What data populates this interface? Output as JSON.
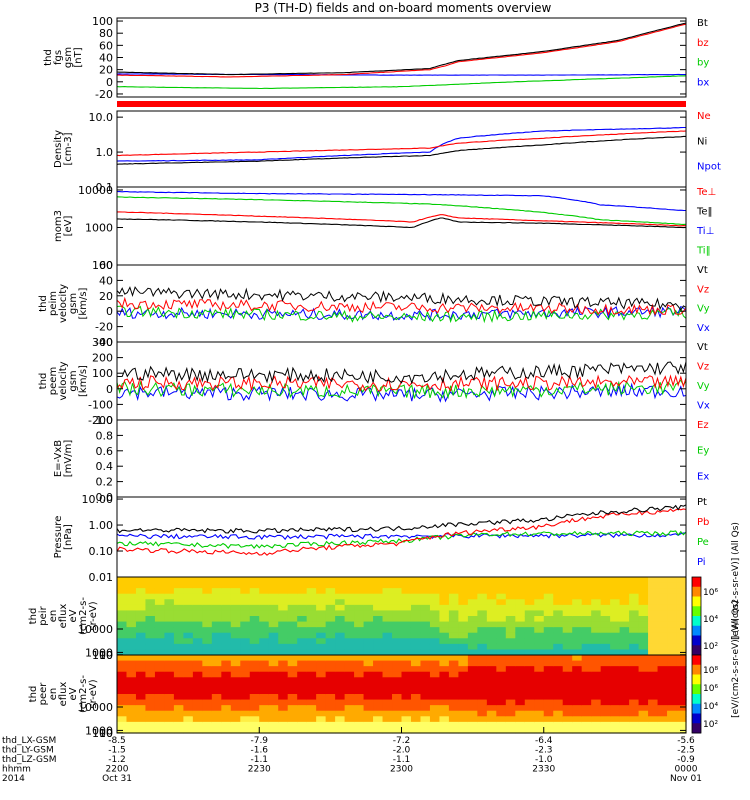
{
  "title": "P3 (TH-D) fields and on-board moments overview",
  "chart_data": [
    {
      "type": "line",
      "ylabel": [
        "thd",
        "fgs",
        "gsm",
        "[nT]"
      ],
      "yticks": [
        "100",
        "80",
        "60",
        "40",
        "20",
        "0",
        "-20"
      ],
      "ylim": [
        -25,
        105
      ],
      "legend": [
        {
          "name": "Bt",
          "color": "#000000"
        },
        {
          "name": "bz",
          "color": "#ff0000"
        },
        {
          "name": "by",
          "color": "#00cc00"
        },
        {
          "name": "bx",
          "color": "#0000ff"
        }
      ],
      "series": [
        {
          "name": "Bt",
          "x": [
            0,
            0.2,
            0.4,
            0.55,
            0.58,
            0.6,
            0.75,
            0.88,
            1
          ],
          "y": [
            16,
            12,
            15,
            22,
            30,
            35,
            50,
            68,
            97
          ]
        },
        {
          "name": "bz",
          "x": [
            0,
            0.2,
            0.4,
            0.55,
            0.58,
            0.6,
            0.75,
            0.88,
            1
          ],
          "y": [
            11,
            8,
            12,
            20,
            27,
            33,
            48,
            66,
            95
          ]
        },
        {
          "name": "by",
          "x": [
            0,
            0.25,
            0.5,
            0.7,
            1
          ],
          "y": [
            -8,
            -11,
            -8,
            0,
            10
          ]
        },
        {
          "name": "bx",
          "x": [
            0,
            0.25,
            0.5,
            0.75,
            1
          ],
          "y": [
            13,
            12,
            11,
            11,
            12
          ]
        }
      ],
      "color_bar_indicator": "#ff0000"
    },
    {
      "type": "line",
      "scale": "log",
      "ylabel": [
        "Density",
        "[cm-3]"
      ],
      "yticks": [
        "10.0",
        "1.0",
        "0.1"
      ],
      "ylim": [
        0.1,
        15
      ],
      "legend": [
        {
          "name": "Ne",
          "color": "#ff0000"
        },
        {
          "name": "Ni",
          "color": "#000000"
        },
        {
          "name": "Npot",
          "color": "#0000ff"
        }
      ],
      "series": [
        {
          "name": "Ne",
          "x": [
            0,
            0.25,
            0.55,
            0.6,
            0.75,
            1
          ],
          "y": [
            0.8,
            1.0,
            1.3,
            1.8,
            2.5,
            4.0
          ]
        },
        {
          "name": "Ni",
          "x": [
            0,
            0.25,
            0.55,
            0.6,
            0.75,
            1
          ],
          "y": [
            0.45,
            0.55,
            0.8,
            1.1,
            1.6,
            2.8
          ]
        },
        {
          "name": "Npot",
          "x": [
            0,
            0.25,
            0.55,
            0.6,
            0.75,
            1
          ],
          "y": [
            0.55,
            0.6,
            1.0,
            2.5,
            4.0,
            5.0
          ]
        }
      ]
    },
    {
      "type": "line",
      "scale": "log",
      "ylabel": [
        "mom3",
        "[eV]"
      ],
      "yticks": [
        "10000",
        "1000",
        "100"
      ],
      "ylim": [
        100,
        12000
      ],
      "legend": [
        {
          "name": "Te⊥",
          "color": "#ff0000"
        },
        {
          "name": "Te‖",
          "color": "#000000"
        },
        {
          "name": "Ti⊥",
          "color": "#0000ff"
        },
        {
          "name": "Ti‖",
          "color": "#00cc00"
        }
      ],
      "series": [
        {
          "name": "Te⊥",
          "x": [
            0,
            0.25,
            0.52,
            0.57,
            0.6,
            0.75,
            1
          ],
          "y": [
            2600,
            2000,
            1400,
            2200,
            1800,
            1500,
            1100
          ]
        },
        {
          "name": "Te‖",
          "x": [
            0,
            0.25,
            0.52,
            0.57,
            0.6,
            0.75,
            1
          ],
          "y": [
            1700,
            1400,
            1000,
            1800,
            1400,
            1300,
            1000
          ]
        },
        {
          "name": "Ti⊥",
          "x": [
            0,
            0.25,
            0.55,
            0.75,
            0.85,
            1
          ],
          "y": [
            9000,
            8000,
            7500,
            7000,
            4000,
            2800
          ]
        },
        {
          "name": "Ti‖",
          "x": [
            0,
            0.25,
            0.55,
            0.75,
            0.85,
            1
          ],
          "y": [
            6500,
            5500,
            4200,
            2500,
            1600,
            1200
          ]
        }
      ]
    },
    {
      "type": "line",
      "ylabel": [
        "thd",
        "peim",
        "velocity",
        "gsm",
        "[km/s]"
      ],
      "yticks": [
        "60",
        "40",
        "20",
        "0",
        "-20",
        "-40"
      ],
      "ylim": [
        -40,
        60
      ],
      "legend": [
        {
          "name": "Vt",
          "color": "#000000"
        },
        {
          "name": "Vz",
          "color": "#ff0000"
        },
        {
          "name": "Vy",
          "color": "#00cc00"
        },
        {
          "name": "Vx",
          "color": "#0000ff"
        }
      ],
      "series": [
        {
          "name": "Vt",
          "x": [
            0,
            0.5,
            1
          ],
          "y": [
            25,
            18,
            8
          ]
        },
        {
          "name": "Vz",
          "x": [
            0,
            0.5,
            1
          ],
          "y": [
            10,
            5,
            2
          ]
        },
        {
          "name": "Vy",
          "x": [
            0,
            0.5,
            1
          ],
          "y": [
            0,
            -8,
            -3
          ]
        },
        {
          "name": "Vx",
          "x": [
            0,
            0.5,
            1
          ],
          "y": [
            -2,
            -5,
            0
          ]
        }
      ]
    },
    {
      "type": "line",
      "ylabel": [
        "thd",
        "peem",
        "velocity",
        "gsm",
        "[km/s]"
      ],
      "yticks": [
        "300",
        "200",
        "100",
        "0",
        "-100",
        "-200"
      ],
      "ylim": [
        -200,
        300
      ],
      "legend": [
        {
          "name": "Vt",
          "color": "#000000"
        },
        {
          "name": "Vz",
          "color": "#ff0000"
        },
        {
          "name": "Vy",
          "color": "#00cc00"
        },
        {
          "name": "Vx",
          "color": "#0000ff"
        }
      ],
      "series": [
        {
          "name": "Vt",
          "x": [
            0,
            0.5,
            1
          ],
          "y": [
            100,
            80,
            140
          ]
        },
        {
          "name": "Vz",
          "x": [
            0,
            0.5,
            1
          ],
          "y": [
            40,
            30,
            40
          ]
        },
        {
          "name": "Vy",
          "x": [
            0,
            0.5,
            1
          ],
          "y": [
            0,
            -20,
            10
          ]
        },
        {
          "name": "Vx",
          "x": [
            0,
            0.5,
            1
          ],
          "y": [
            -20,
            -40,
            -10
          ]
        }
      ]
    },
    {
      "type": "line",
      "ylabel": [
        "E=-VxB",
        "[mV/m]"
      ],
      "yticks": [
        "1.0",
        "0.8",
        "0.6",
        "0.4",
        "0.2",
        "0.0"
      ],
      "ylim": [
        0,
        1
      ],
      "legend": [
        {
          "name": "Ez",
          "color": "#ff0000"
        },
        {
          "name": "Ey",
          "color": "#00cc00"
        },
        {
          "name": "Ex",
          "color": "#0000ff"
        }
      ],
      "series": []
    },
    {
      "type": "line",
      "scale": "log",
      "ylabel": [
        "Pressure",
        "[nPa]"
      ],
      "yticks": [
        "10.00",
        "1.00",
        "0.10",
        "0.01"
      ],
      "ylim": [
        0.01,
        12
      ],
      "legend": [
        {
          "name": "Pt",
          "color": "#000000"
        },
        {
          "name": "Pb",
          "color": "#ff0000"
        },
        {
          "name": "Pe",
          "color": "#00cc00"
        },
        {
          "name": "Pi",
          "color": "#0000ff"
        }
      ],
      "series": [
        {
          "name": "Pt",
          "x": [
            0,
            0.25,
            0.5,
            0.75,
            1
          ],
          "y": [
            0.65,
            0.6,
            0.75,
            1.6,
            5.0
          ]
        },
        {
          "name": "Pb",
          "x": [
            0,
            0.25,
            0.5,
            0.75,
            1
          ],
          "y": [
            0.12,
            0.08,
            0.2,
            0.9,
            4.0
          ]
        },
        {
          "name": "Pe",
          "x": [
            0,
            0.25,
            0.5,
            0.65,
            1
          ],
          "y": [
            0.2,
            0.15,
            0.25,
            0.45,
            0.5
          ]
        },
        {
          "name": "Pi",
          "x": [
            0,
            0.25,
            0.5,
            0.75,
            1
          ],
          "y": [
            0.38,
            0.35,
            0.38,
            0.4,
            0.42
          ]
        }
      ]
    },
    {
      "type": "heatmap",
      "ylabel": [
        "thd",
        "peir",
        "en",
        "eflux",
        "eV",
        "(cm2-s-",
        "sr-eV)"
      ],
      "yticks": [
        "10000",
        "1000",
        "100",
        "10"
      ],
      "ylim": [
        7,
        30000
      ],
      "colorbar": {
        "ticks": [
          "10⁶",
          "10⁴",
          "10²"
        ],
        "label": "[eV/(cm2-s-sr-eV)] (All Qs)"
      }
    },
    {
      "type": "heatmap",
      "ylabel": [
        "thd",
        "peer",
        "en",
        "eflux",
        "eV",
        "(cm2-s-",
        "sr-eV)"
      ],
      "yticks": [
        "10000",
        "1000",
        "100",
        "10"
      ],
      "ylim": [
        7,
        30000
      ],
      "colorbar": {
        "ticks": [
          "10⁸",
          "10⁶",
          "10⁴",
          "10²"
        ],
        "label": "[eV/(cm2-s-sr-eV)] (All Qs)"
      }
    }
  ],
  "x_axis": {
    "row_labels": [
      "thd_LX-GSM",
      "thd_LY-GSM",
      "thd_LZ-GSM",
      "hhmm",
      "2014"
    ],
    "ticks": [
      {
        "lx": "-8.5",
        "ly": "-1.5",
        "lz": "-1.2",
        "hhmm": "2200",
        "date": "Oct 31"
      },
      {
        "lx": "-7.9",
        "ly": "-1.6",
        "lz": "-1.1",
        "hhmm": "2230",
        "date": ""
      },
      {
        "lx": "-7.2",
        "ly": "-2.0",
        "lz": "-1.1",
        "hhmm": "2300",
        "date": ""
      },
      {
        "lx": "-6.4",
        "ly": "-2.3",
        "lz": "-1.0",
        "hhmm": "2330",
        "date": ""
      },
      {
        "lx": "-5.6",
        "ly": "-2.5",
        "lz": "-0.9",
        "hhmm": "0000",
        "date": "Nov 01"
      }
    ]
  }
}
